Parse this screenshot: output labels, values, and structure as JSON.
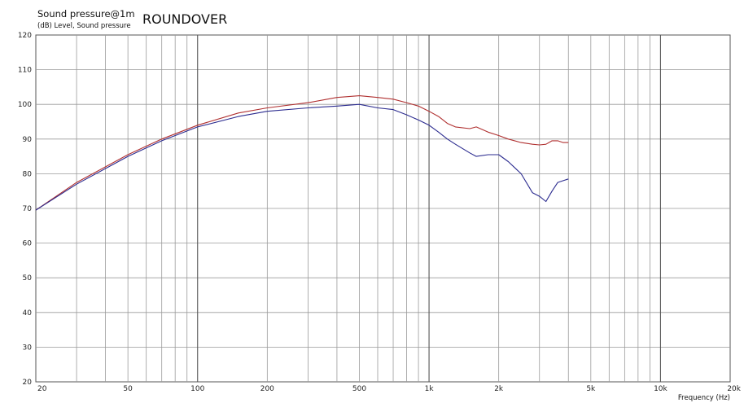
{
  "chart_data": {
    "type": "line",
    "title": "ROUNDOVER",
    "ylabel": "Sound pressure@1m",
    "yunit": "(dB)  Level, Sound pressure",
    "xlabel": "Frequency  (Hz)",
    "xscale": "log",
    "xlim": [
      20,
      20000
    ],
    "ylim": [
      20,
      120
    ],
    "grid": true,
    "xticks": [
      {
        "v": 20,
        "label": "20"
      },
      {
        "v": 50,
        "label": "50"
      },
      {
        "v": 100,
        "label": "100"
      },
      {
        "v": 200,
        "label": "200"
      },
      {
        "v": 500,
        "label": "500"
      },
      {
        "v": 1000,
        "label": "1k"
      },
      {
        "v": 2000,
        "label": "2k"
      },
      {
        "v": 5000,
        "label": "5k"
      },
      {
        "v": 10000,
        "label": "10k"
      },
      {
        "v": 20000,
        "label": "20k"
      }
    ],
    "yticks": [
      20,
      30,
      40,
      50,
      60,
      70,
      80,
      90,
      100,
      110,
      120
    ],
    "series": [
      {
        "color": "#b03030",
        "x": [
          20,
          30,
          40,
          50,
          70,
          100,
          150,
          200,
          300,
          400,
          500,
          600,
          700,
          800,
          900,
          1000,
          1100,
          1200,
          1300,
          1500,
          1600,
          1800,
          2000,
          2200,
          2500,
          2800,
          3000,
          3200,
          3400,
          3600,
          3800,
          4000
        ],
        "values": [
          69.5,
          77.5,
          82,
          85.5,
          90,
          94,
          97.5,
          99,
          100.5,
          102,
          102.5,
          102,
          101.5,
          100.5,
          99.5,
          98,
          96.5,
          94.5,
          93.5,
          93,
          93.5,
          92,
          91,
          90,
          89,
          88.5,
          88.3,
          88.5,
          89.5,
          89.5,
          89,
          89
        ]
      },
      {
        "color": "#2b2b8f",
        "x": [
          20,
          30,
          40,
          50,
          70,
          100,
          150,
          200,
          300,
          400,
          500,
          600,
          700,
          800,
          900,
          1000,
          1100,
          1200,
          1300,
          1500,
          1600,
          1800,
          2000,
          2200,
          2500,
          2800,
          3000,
          3200,
          3400,
          3600,
          3800,
          4000
        ],
        "values": [
          69.5,
          77,
          81.5,
          85,
          89.5,
          93.5,
          96.5,
          98,
          99,
          99.5,
          100,
          99,
          98.5,
          97,
          95.5,
          94,
          92,
          90,
          88.5,
          86,
          85,
          85.5,
          85.5,
          83.5,
          80,
          74.5,
          73.5,
          72,
          75,
          77.5,
          78,
          78.5
        ]
      }
    ]
  }
}
